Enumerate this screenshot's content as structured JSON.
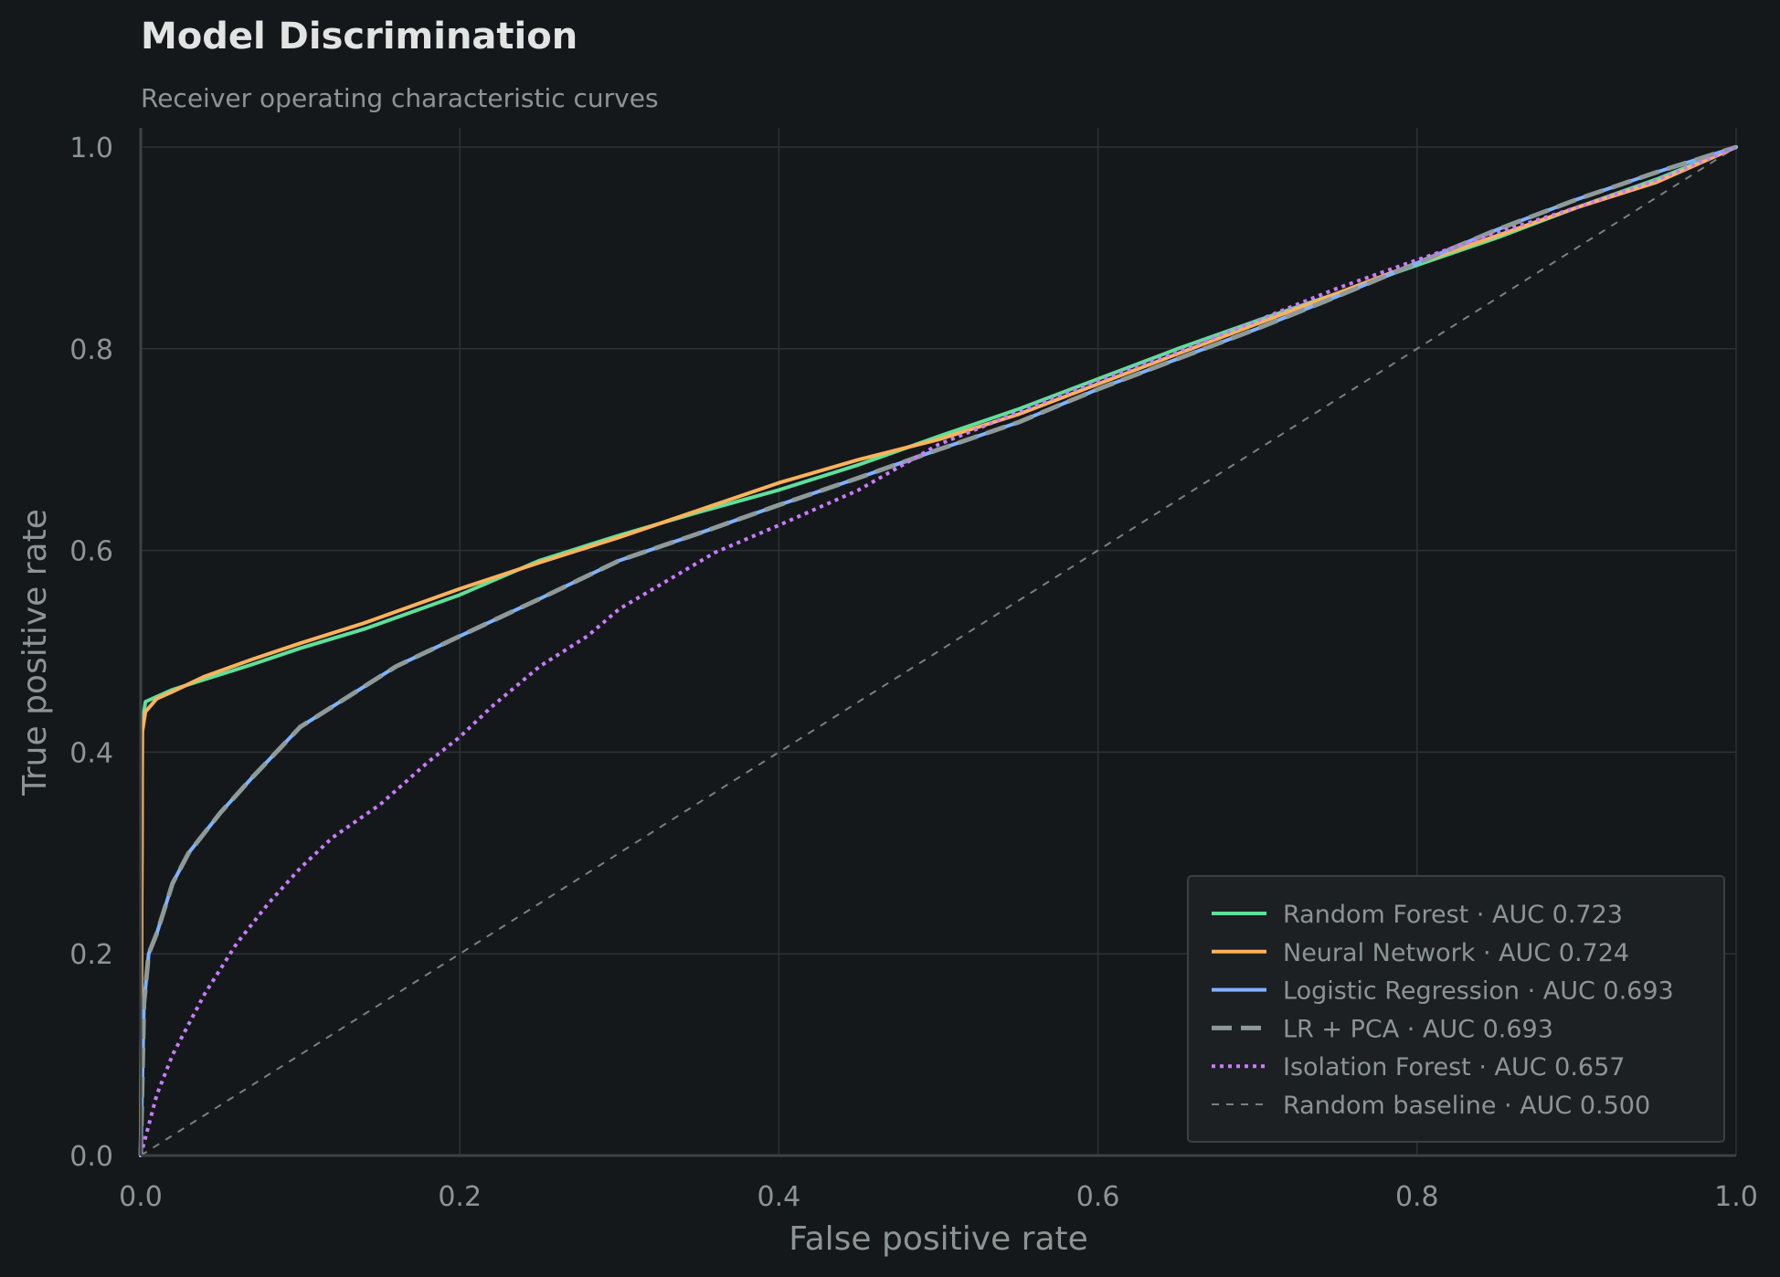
{
  "chart_data": {
    "type": "line",
    "title": "Model Discrimination",
    "subtitle": "Receiver operating characteristic curves",
    "xlabel": "False positive rate",
    "ylabel": "True positive rate",
    "xlim": [
      0,
      1
    ],
    "ylim": [
      0,
      1
    ],
    "xticks": [
      "0.0",
      "0.2",
      "0.4",
      "0.6",
      "0.8",
      "1.0"
    ],
    "yticks": [
      "0.0",
      "0.2",
      "0.4",
      "0.6",
      "0.8",
      "1.0"
    ],
    "grid": true,
    "legend_position": "bottom-right",
    "series": [
      {
        "name": "Random Forest",
        "auc": "AUC 0.723",
        "color": "#5ee09a",
        "style": "solid",
        "x": [
          0,
          0.001,
          0.003,
          0.01,
          0.02,
          0.04,
          0.07,
          0.1,
          0.14,
          0.2,
          0.25,
          0.3,
          0.35,
          0.4,
          0.45,
          0.5,
          0.55,
          0.6,
          0.65,
          0.7,
          0.75,
          0.8,
          0.85,
          0.9,
          0.95,
          1.0
        ],
        "y": [
          0,
          0.43,
          0.45,
          0.455,
          0.462,
          0.472,
          0.487,
          0.503,
          0.522,
          0.556,
          0.59,
          0.615,
          0.638,
          0.66,
          0.685,
          0.713,
          0.74,
          0.77,
          0.8,
          0.828,
          0.855,
          0.883,
          0.91,
          0.94,
          0.968,
          1.0
        ]
      },
      {
        "name": "Neural Network",
        "auc": "AUC 0.724",
        "color": "#ffb25a",
        "style": "solid",
        "x": [
          0,
          0.001,
          0.003,
          0.01,
          0.02,
          0.04,
          0.07,
          0.1,
          0.14,
          0.2,
          0.25,
          0.3,
          0.35,
          0.4,
          0.45,
          0.5,
          0.55,
          0.6,
          0.65,
          0.7,
          0.75,
          0.8,
          0.85,
          0.9,
          0.95,
          1.0
        ],
        "y": [
          0,
          0.42,
          0.44,
          0.453,
          0.46,
          0.475,
          0.492,
          0.508,
          0.528,
          0.562,
          0.588,
          0.613,
          0.64,
          0.667,
          0.69,
          0.71,
          0.735,
          0.765,
          0.795,
          0.825,
          0.855,
          0.885,
          0.912,
          0.94,
          0.965,
          1.0
        ]
      },
      {
        "name": "Logistic Regression",
        "auc": "AUC 0.693",
        "color": "#7fb2ff",
        "style": "solid",
        "x": [
          0,
          0.002,
          0.005,
          0.01,
          0.02,
          0.03,
          0.05,
          0.07,
          0.1,
          0.13,
          0.16,
          0.2,
          0.25,
          0.3,
          0.35,
          0.4,
          0.45,
          0.5,
          0.55,
          0.6,
          0.65,
          0.7,
          0.75,
          0.8,
          0.85,
          0.9,
          0.95,
          1.0
        ],
        "y": [
          0,
          0.15,
          0.2,
          0.22,
          0.27,
          0.3,
          0.34,
          0.375,
          0.425,
          0.455,
          0.485,
          0.515,
          0.552,
          0.59,
          0.617,
          0.645,
          0.672,
          0.7,
          0.727,
          0.76,
          0.79,
          0.82,
          0.852,
          0.885,
          0.918,
          0.948,
          0.975,
          1.0
        ]
      },
      {
        "name": "LR + PCA",
        "auc": "AUC 0.693",
        "color": "#8e9a9a",
        "style": "dashed",
        "x": [
          0,
          0.002,
          0.005,
          0.01,
          0.02,
          0.03,
          0.05,
          0.07,
          0.1,
          0.13,
          0.16,
          0.2,
          0.25,
          0.3,
          0.35,
          0.4,
          0.45,
          0.5,
          0.55,
          0.6,
          0.65,
          0.7,
          0.75,
          0.8,
          0.85,
          0.9,
          0.95,
          1.0
        ],
        "y": [
          0,
          0.15,
          0.2,
          0.22,
          0.27,
          0.3,
          0.34,
          0.375,
          0.425,
          0.455,
          0.485,
          0.515,
          0.552,
          0.59,
          0.617,
          0.645,
          0.672,
          0.7,
          0.727,
          0.76,
          0.79,
          0.82,
          0.852,
          0.885,
          0.918,
          0.948,
          0.975,
          1.0
        ]
      },
      {
        "name": "Isolation Forest",
        "auc": "AUC 0.657",
        "color": "#c77dff",
        "style": "dotted",
        "x": [
          0,
          0.01,
          0.02,
          0.04,
          0.06,
          0.08,
          0.1,
          0.12,
          0.15,
          0.18,
          0.2,
          0.22,
          0.25,
          0.28,
          0.3,
          0.33,
          0.36,
          0.4,
          0.45,
          0.5,
          0.55,
          0.6,
          0.65,
          0.7,
          0.75,
          0.8,
          0.85,
          0.9,
          0.95,
          1.0
        ],
        "y": [
          0,
          0.06,
          0.1,
          0.16,
          0.21,
          0.25,
          0.285,
          0.315,
          0.348,
          0.39,
          0.415,
          0.445,
          0.485,
          0.515,
          0.542,
          0.57,
          0.598,
          0.625,
          0.66,
          0.705,
          0.737,
          0.768,
          0.797,
          0.828,
          0.86,
          0.888,
          0.915,
          0.94,
          0.967,
          1.0
        ]
      },
      {
        "name": "Random baseline",
        "auc": "AUC 0.500",
        "color": "#7a7f80",
        "style": "baseline",
        "x": [
          0,
          1
        ],
        "y": [
          0,
          1
        ]
      }
    ]
  }
}
